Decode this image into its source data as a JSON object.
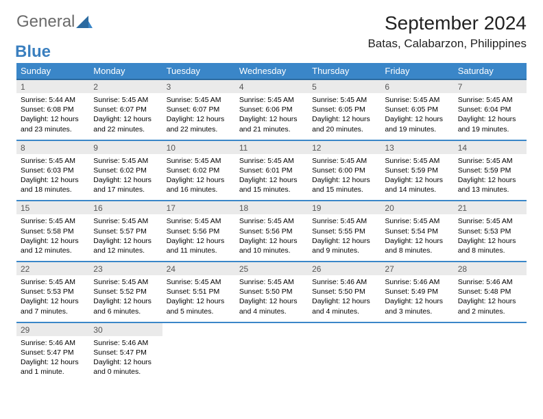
{
  "brand": {
    "part1": "General",
    "part2": "Blue"
  },
  "title": "September 2024",
  "location": "Batas, Calabarzon, Philippines",
  "colors": {
    "header_bg": "#3a86c8",
    "header_text": "#ffffff",
    "daynum_bg": "#eaeaea",
    "daynum_text": "#555555",
    "rule": "#3a86c8",
    "body_text": "#000000",
    "page_bg": "#ffffff",
    "logo_gray": "#6a6a6a",
    "logo_blue": "#3a7fbf"
  },
  "typography": {
    "title_fontsize": 28,
    "location_fontsize": 17,
    "dow_fontsize": 13,
    "daynum_fontsize": 12,
    "cell_fontsize": 10.5
  },
  "days_of_week": [
    "Sunday",
    "Monday",
    "Tuesday",
    "Wednesday",
    "Thursday",
    "Friday",
    "Saturday"
  ],
  "weeks": [
    [
      {
        "n": "1",
        "sr": "5:44 AM",
        "ss": "6:08 PM",
        "dl": "12 hours and 23 minutes."
      },
      {
        "n": "2",
        "sr": "5:45 AM",
        "ss": "6:07 PM",
        "dl": "12 hours and 22 minutes."
      },
      {
        "n": "3",
        "sr": "5:45 AM",
        "ss": "6:07 PM",
        "dl": "12 hours and 22 minutes."
      },
      {
        "n": "4",
        "sr": "5:45 AM",
        "ss": "6:06 PM",
        "dl": "12 hours and 21 minutes."
      },
      {
        "n": "5",
        "sr": "5:45 AM",
        "ss": "6:05 PM",
        "dl": "12 hours and 20 minutes."
      },
      {
        "n": "6",
        "sr": "5:45 AM",
        "ss": "6:05 PM",
        "dl": "12 hours and 19 minutes."
      },
      {
        "n": "7",
        "sr": "5:45 AM",
        "ss": "6:04 PM",
        "dl": "12 hours and 19 minutes."
      }
    ],
    [
      {
        "n": "8",
        "sr": "5:45 AM",
        "ss": "6:03 PM",
        "dl": "12 hours and 18 minutes."
      },
      {
        "n": "9",
        "sr": "5:45 AM",
        "ss": "6:02 PM",
        "dl": "12 hours and 17 minutes."
      },
      {
        "n": "10",
        "sr": "5:45 AM",
        "ss": "6:02 PM",
        "dl": "12 hours and 16 minutes."
      },
      {
        "n": "11",
        "sr": "5:45 AM",
        "ss": "6:01 PM",
        "dl": "12 hours and 15 minutes."
      },
      {
        "n": "12",
        "sr": "5:45 AM",
        "ss": "6:00 PM",
        "dl": "12 hours and 15 minutes."
      },
      {
        "n": "13",
        "sr": "5:45 AM",
        "ss": "5:59 PM",
        "dl": "12 hours and 14 minutes."
      },
      {
        "n": "14",
        "sr": "5:45 AM",
        "ss": "5:59 PM",
        "dl": "12 hours and 13 minutes."
      }
    ],
    [
      {
        "n": "15",
        "sr": "5:45 AM",
        "ss": "5:58 PM",
        "dl": "12 hours and 12 minutes."
      },
      {
        "n": "16",
        "sr": "5:45 AM",
        "ss": "5:57 PM",
        "dl": "12 hours and 12 minutes."
      },
      {
        "n": "17",
        "sr": "5:45 AM",
        "ss": "5:56 PM",
        "dl": "12 hours and 11 minutes."
      },
      {
        "n": "18",
        "sr": "5:45 AM",
        "ss": "5:56 PM",
        "dl": "12 hours and 10 minutes."
      },
      {
        "n": "19",
        "sr": "5:45 AM",
        "ss": "5:55 PM",
        "dl": "12 hours and 9 minutes."
      },
      {
        "n": "20",
        "sr": "5:45 AM",
        "ss": "5:54 PM",
        "dl": "12 hours and 8 minutes."
      },
      {
        "n": "21",
        "sr": "5:45 AM",
        "ss": "5:53 PM",
        "dl": "12 hours and 8 minutes."
      }
    ],
    [
      {
        "n": "22",
        "sr": "5:45 AM",
        "ss": "5:53 PM",
        "dl": "12 hours and 7 minutes."
      },
      {
        "n": "23",
        "sr": "5:45 AM",
        "ss": "5:52 PM",
        "dl": "12 hours and 6 minutes."
      },
      {
        "n": "24",
        "sr": "5:45 AM",
        "ss": "5:51 PM",
        "dl": "12 hours and 5 minutes."
      },
      {
        "n": "25",
        "sr": "5:45 AM",
        "ss": "5:50 PM",
        "dl": "12 hours and 4 minutes."
      },
      {
        "n": "26",
        "sr": "5:46 AM",
        "ss": "5:50 PM",
        "dl": "12 hours and 4 minutes."
      },
      {
        "n": "27",
        "sr": "5:46 AM",
        "ss": "5:49 PM",
        "dl": "12 hours and 3 minutes."
      },
      {
        "n": "28",
        "sr": "5:46 AM",
        "ss": "5:48 PM",
        "dl": "12 hours and 2 minutes."
      }
    ],
    [
      {
        "n": "29",
        "sr": "5:46 AM",
        "ss": "5:47 PM",
        "dl": "12 hours and 1 minute."
      },
      {
        "n": "30",
        "sr": "5:46 AM",
        "ss": "5:47 PM",
        "dl": "12 hours and 0 minutes."
      },
      null,
      null,
      null,
      null,
      null
    ]
  ],
  "labels": {
    "sunrise": "Sunrise:",
    "sunset": "Sunset:",
    "daylight": "Daylight:"
  }
}
